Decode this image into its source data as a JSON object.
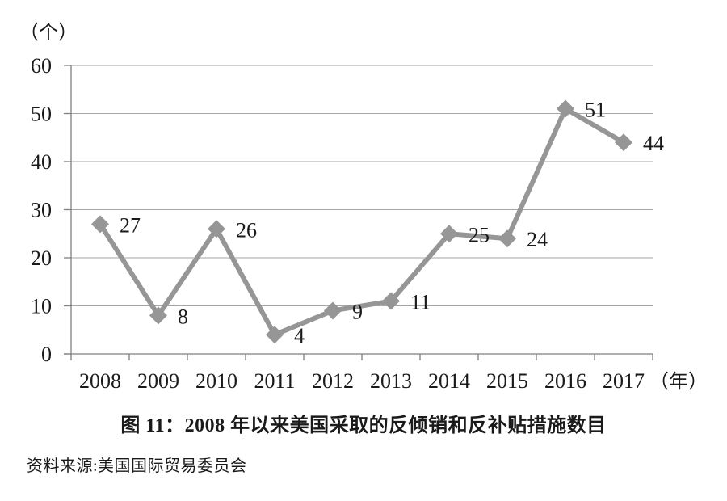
{
  "colors": {
    "line": "#969696",
    "marker": "#969696",
    "gridline": "#a6a6a6",
    "axis": "#7f7f7f",
    "text": "#1a1a1a",
    "background": "#ffffff"
  },
  "chart_data": {
    "type": "line",
    "categories": [
      "2008",
      "2009",
      "2010",
      "2011",
      "2012",
      "2013",
      "2014",
      "2015",
      "2016",
      "2017"
    ],
    "values": [
      27,
      8,
      26,
      4,
      9,
      11,
      25,
      24,
      51,
      44
    ],
    "yticks": [
      0,
      10,
      20,
      30,
      40,
      50,
      60
    ],
    "ylim": [
      0,
      60
    ],
    "grid": true,
    "marker": "diamond",
    "data_labels_shown": true,
    "legend": "none",
    "y_axis_unit_label": "（个）",
    "x_axis_unit_label": "（年）",
    "title": "图 11：2008 年以来美国采取的反倾销和反补贴措施数目",
    "source": "资料来源:美国国际贸易委员会"
  }
}
